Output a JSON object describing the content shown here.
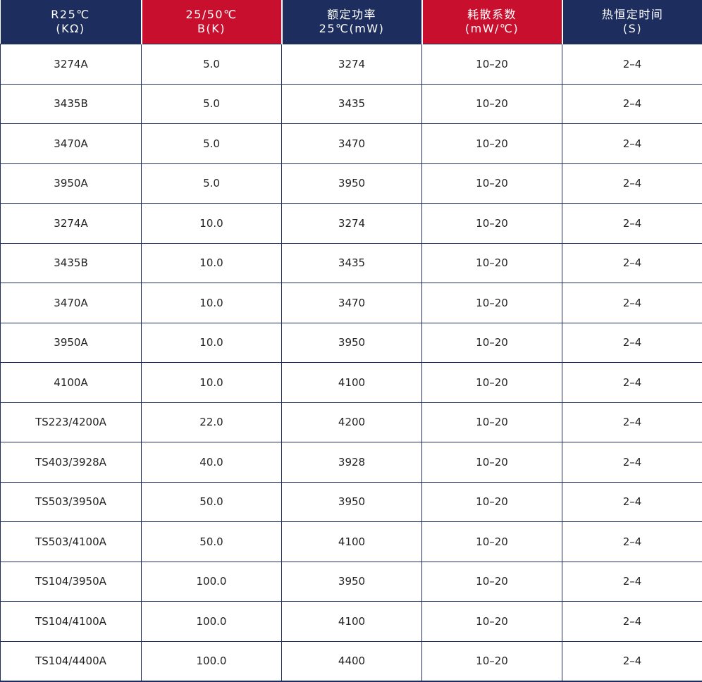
{
  "colors": {
    "header_navy": "#1c2d5e",
    "header_red": "#c8102e",
    "grid_line": "#1c2d5e",
    "text": "#222222"
  },
  "headers": [
    {
      "line1": "R25℃",
      "line2": "(KΩ)",
      "color": "navy"
    },
    {
      "line1": "25/50℃",
      "line2": "B(K)",
      "color": "red"
    },
    {
      "line1": "额定功率",
      "line2": "25℃(mW)",
      "color": "navy"
    },
    {
      "line1": "耗散系数",
      "line2": "(mW/℃)",
      "color": "red"
    },
    {
      "line1": "热恒定时间",
      "line2": "(S)",
      "color": "navy"
    }
  ],
  "rows": [
    [
      "3274A",
      "5.0",
      "3274",
      "10–20",
      "2–4"
    ],
    [
      "3435B",
      "5.0",
      "3435",
      "10–20",
      "2–4"
    ],
    [
      "3470A",
      "5.0",
      "3470",
      "10–20",
      "2–4"
    ],
    [
      "3950A",
      "5.0",
      "3950",
      "10–20",
      "2–4"
    ],
    [
      "3274A",
      "10.0",
      "3274",
      "10–20",
      "2–4"
    ],
    [
      "3435B",
      "10.0",
      "3435",
      "10–20",
      "2–4"
    ],
    [
      "3470A",
      "10.0",
      "3470",
      "10–20",
      "2–4"
    ],
    [
      "3950A",
      "10.0",
      "3950",
      "10–20",
      "2–4"
    ],
    [
      "4100A",
      "10.0",
      "4100",
      "10–20",
      "2–4"
    ],
    [
      "TS223/4200A",
      "22.0",
      "4200",
      "10–20",
      "2–4"
    ],
    [
      "TS403/3928A",
      "40.0",
      "3928",
      "10–20",
      "2–4"
    ],
    [
      "TS503/3950A",
      "50.0",
      "3950",
      "10–20",
      "2–4"
    ],
    [
      "TS503/4100A",
      "50.0",
      "4100",
      "10–20",
      "2–4"
    ],
    [
      "TS104/3950A",
      "100.0",
      "3950",
      "10–20",
      "2–4"
    ],
    [
      "TS104/4100A",
      "100.0",
      "4100",
      "10–20",
      "2–4"
    ],
    [
      "TS104/4400A",
      "100.0",
      "4400",
      "10–20",
      "2–4"
    ]
  ]
}
